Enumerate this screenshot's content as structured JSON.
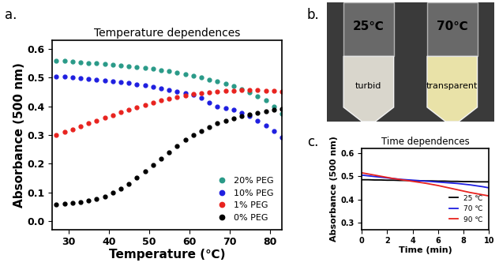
{
  "chart_data": [
    {
      "type": "line",
      "panel": "a.",
      "title": "Temperature dependences",
      "x_label": "Temperature (℃)",
      "y_label": "Absorbance (500 nm)",
      "x": [
        27,
        29,
        31,
        33,
        35,
        37,
        39,
        41,
        43,
        45,
        47,
        49,
        51,
        53,
        55,
        57,
        59,
        61,
        63,
        65,
        67,
        69,
        71,
        73,
        75,
        77,
        79,
        81,
        83
      ],
      "series": [
        {
          "name": "20% PEG",
          "color": "#2a9a88",
          "values": [
            0.56,
            0.558,
            0.556,
            0.554,
            0.552,
            0.55,
            0.548,
            0.546,
            0.543,
            0.54,
            0.537,
            0.534,
            0.531,
            0.527,
            0.522,
            0.517,
            0.512,
            0.506,
            0.5,
            0.494,
            0.487,
            0.479,
            0.47,
            0.46,
            0.449,
            0.436,
            0.42,
            0.4,
            0.375
          ]
        },
        {
          "name": "10% PEG",
          "color": "#1f1fe0",
          "values": [
            0.505,
            0.503,
            0.501,
            0.499,
            0.497,
            0.494,
            0.491,
            0.488,
            0.485,
            0.481,
            0.477,
            0.473,
            0.468,
            0.463,
            0.457,
            0.451,
            0.446,
            0.44,
            0.43,
            0.412,
            0.4,
            0.394,
            0.387,
            0.378,
            0.365,
            0.35,
            0.333,
            0.313,
            0.292
          ]
        },
        {
          "name": "1% PEG",
          "color": "#e8231f",
          "values": [
            0.3,
            0.31,
            0.32,
            0.33,
            0.34,
            0.35,
            0.36,
            0.37,
            0.379,
            0.388,
            0.396,
            0.404,
            0.412,
            0.42,
            0.427,
            0.433,
            0.439,
            0.443,
            0.447,
            0.45,
            0.452,
            0.454,
            0.455,
            0.456,
            0.456,
            0.456,
            0.455,
            0.454,
            0.452
          ]
        },
        {
          "name": "0% PEG",
          "color": "#000000",
          "values": [
            0.058,
            0.06,
            0.062,
            0.065,
            0.07,
            0.077,
            0.086,
            0.098,
            0.113,
            0.13,
            0.15,
            0.172,
            0.195,
            0.218,
            0.24,
            0.262,
            0.283,
            0.3,
            0.315,
            0.328,
            0.34,
            0.35,
            0.358,
            0.365,
            0.372,
            0.378,
            0.383,
            0.388,
            0.392
          ]
        }
      ],
      "marker": "o",
      "line_style": "none",
      "xlim": [
        26,
        83
      ],
      "xticks": [
        30,
        40,
        50,
        60,
        70,
        80
      ],
      "ylim": [
        -0.03,
        0.63
      ],
      "yticks": [
        {
          "value": 0.0,
          "label": "0.0"
        },
        0.1,
        0.2,
        0.3,
        0.4,
        0.5,
        0.6
      ],
      "legend": "lower right"
    },
    {
      "type": "line",
      "panel": "c.",
      "title": "Time dependences",
      "x_label": "Time (min)",
      "y_label": "Absorbance (500 nm)",
      "x": [
        0,
        0.5,
        1,
        1.5,
        2,
        2.5,
        3,
        3.5,
        4,
        4.5,
        5,
        5.5,
        6,
        6.5,
        7,
        7.5,
        8,
        8.5,
        9,
        9.5,
        10
      ],
      "series": [
        {
          "name": "25 ℃",
          "color": "#000000",
          "values": [
            0.485,
            0.485,
            0.484,
            0.484,
            0.483,
            0.483,
            0.482,
            0.482,
            0.481,
            0.481,
            0.48,
            0.48,
            0.479,
            0.479,
            0.478,
            0.478,
            0.477,
            0.477,
            0.476,
            0.476,
            0.476
          ]
        },
        {
          "name": "70 ℃",
          "color": "#1f1fe0",
          "values": [
            0.505,
            0.502,
            0.499,
            0.496,
            0.493,
            0.49,
            0.487,
            0.485,
            0.483,
            0.481,
            0.479,
            0.477,
            0.475,
            0.473,
            0.471,
            0.469,
            0.466,
            0.463,
            0.459,
            0.455,
            0.45
          ]
        },
        {
          "name": "90 ℃",
          "color": "#e8231f",
          "values": [
            0.515,
            0.51,
            0.505,
            0.5,
            0.495,
            0.49,
            0.486,
            0.482,
            0.478,
            0.474,
            0.47,
            0.465,
            0.46,
            0.454,
            0.448,
            0.442,
            0.436,
            0.43,
            0.425,
            0.42,
            0.415
          ]
        }
      ],
      "line_style": "solid",
      "xlim": [
        0,
        10
      ],
      "xticks": [
        0,
        2,
        4,
        6,
        8,
        10
      ],
      "ylim": [
        0.27,
        0.62
      ],
      "yticks": [
        0.3,
        0.4,
        0.5,
        0.6
      ],
      "legend": "lower right"
    }
  ],
  "photo": {
    "panel": "b.",
    "tubes": [
      {
        "temperature": "25℃",
        "state": "turbid"
      },
      {
        "temperature": "70℃",
        "state": "transparent"
      }
    ]
  }
}
